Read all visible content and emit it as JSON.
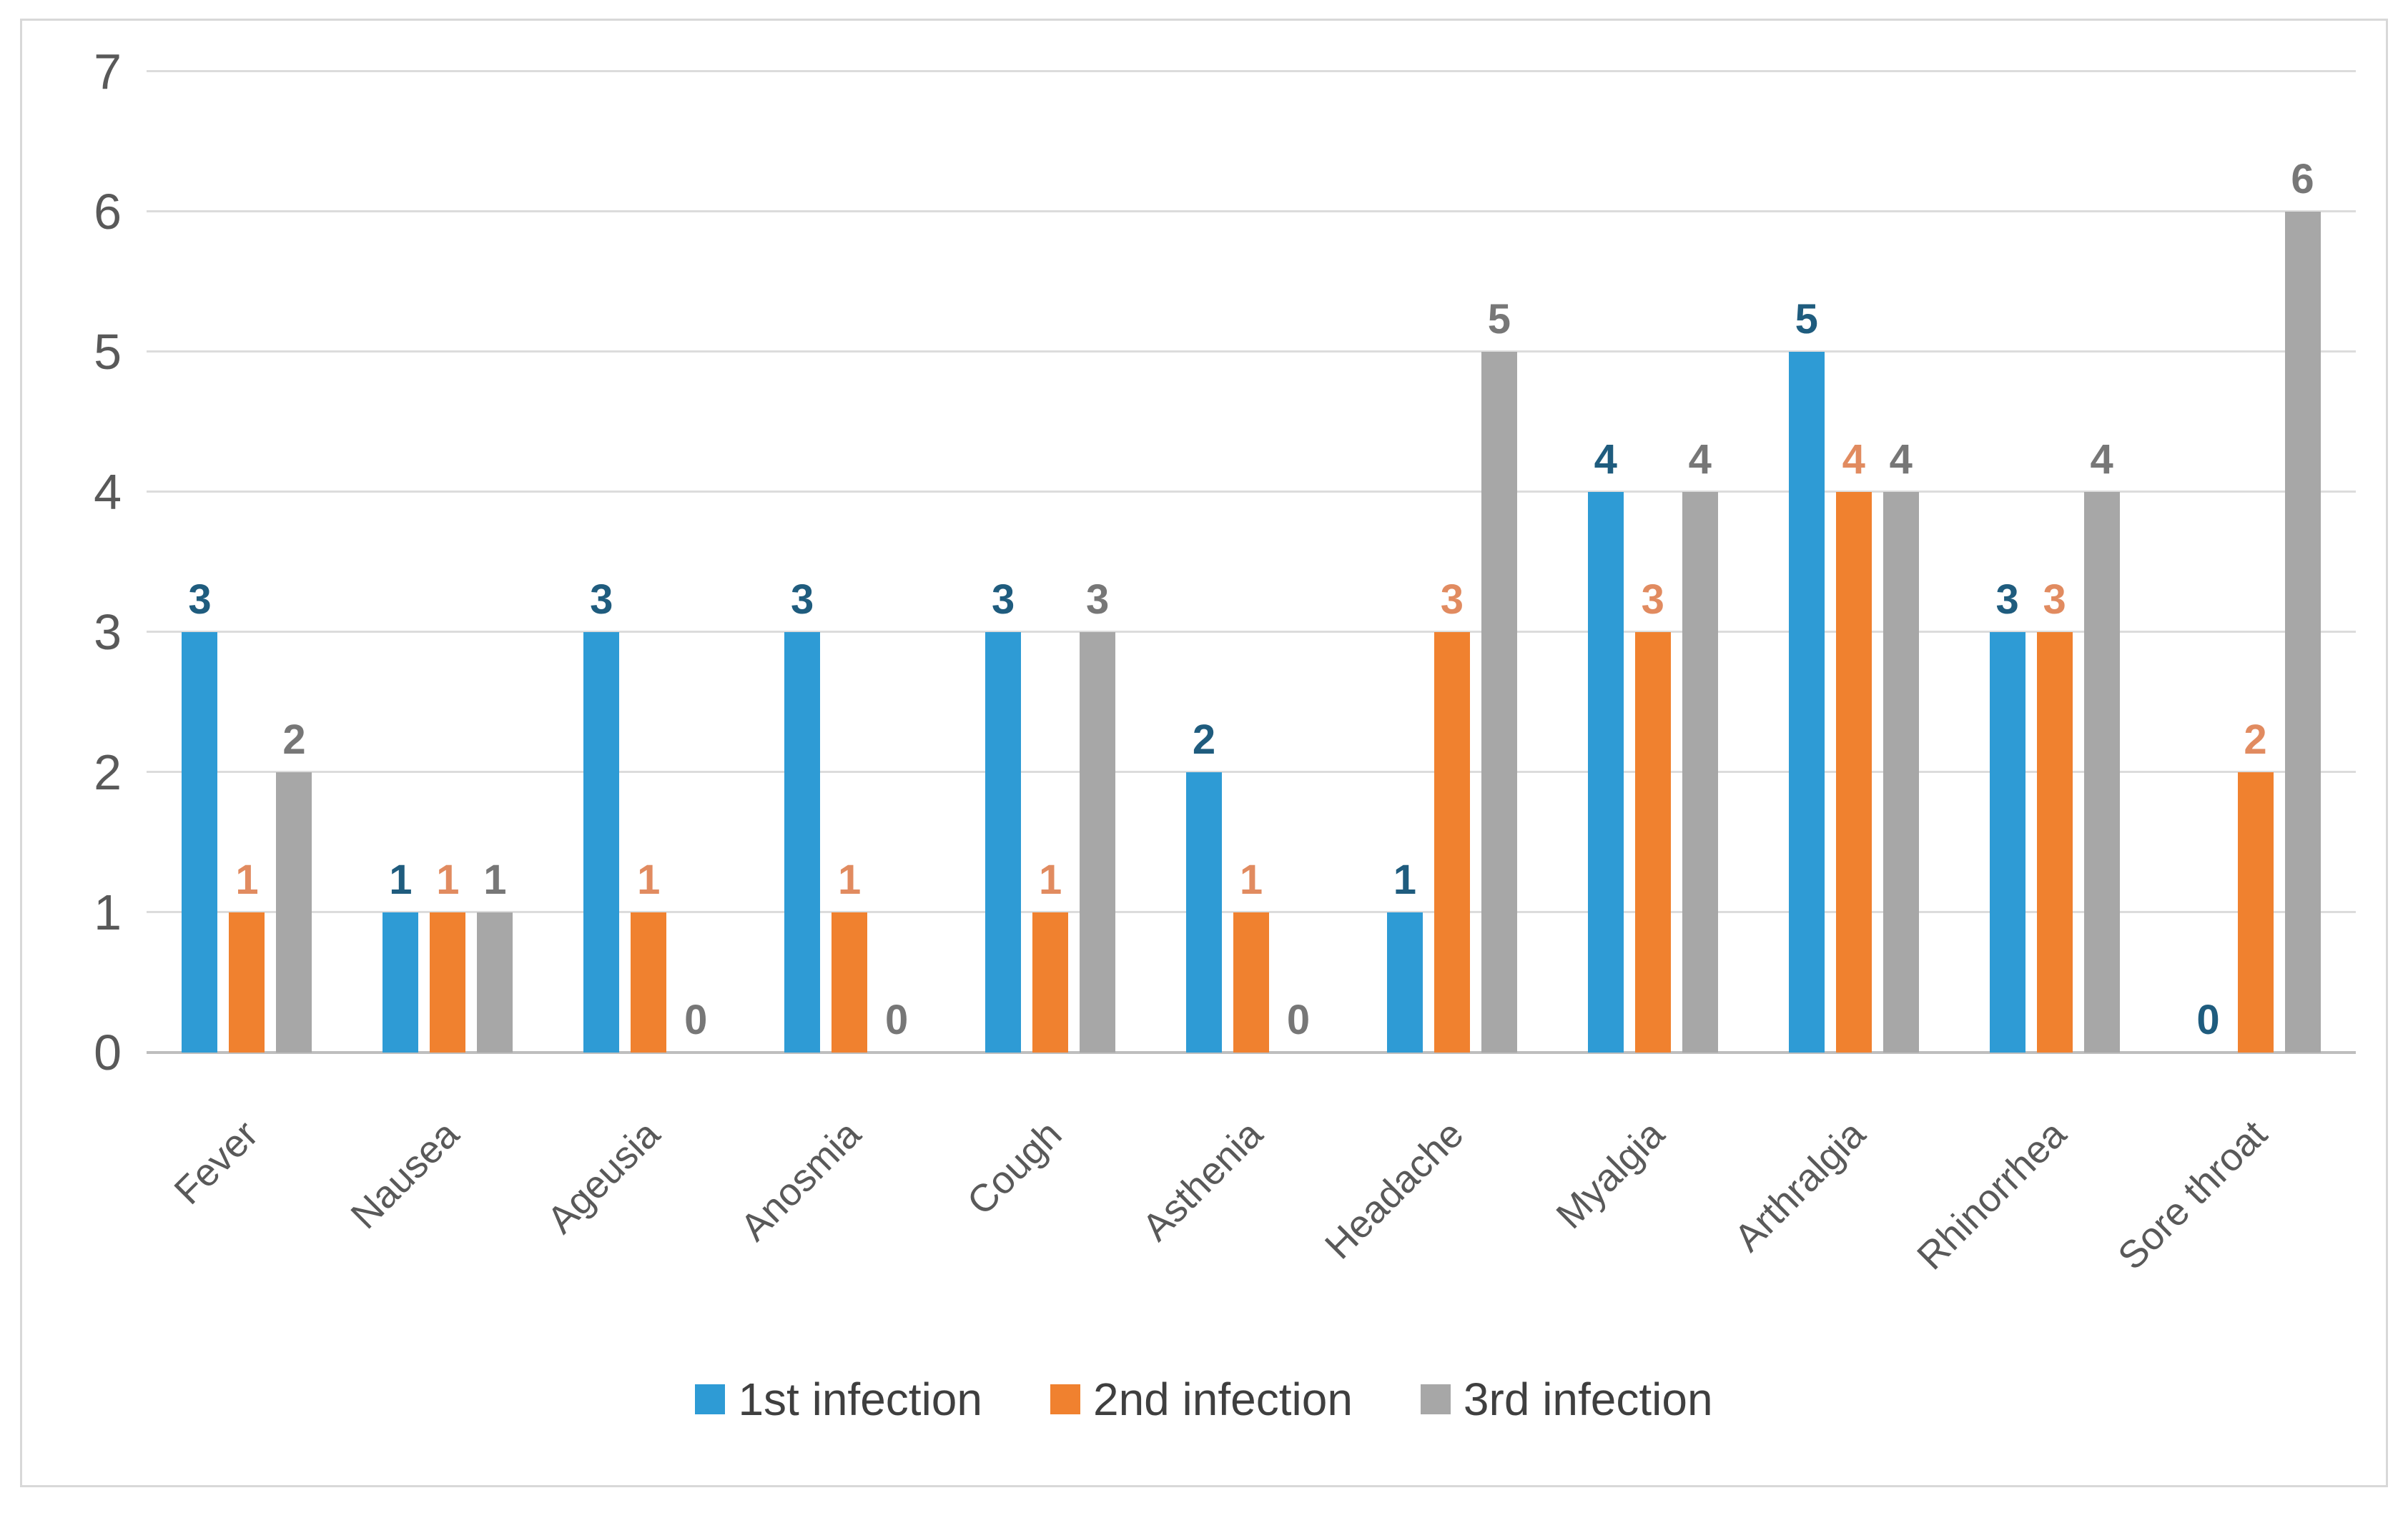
{
  "figure": {
    "background": "#ffffff",
    "border_color": "#d8d8d8"
  },
  "chart_data": {
    "type": "bar",
    "title": "",
    "xlabel": "",
    "ylabel": "",
    "categories": [
      "Fever",
      "Nausea",
      "Ageusia",
      "Anosmia",
      "Cough",
      "Asthenia",
      "Headache",
      "Myalgia",
      "Arthralgia",
      "Rhinorrhea",
      "Sore throat"
    ],
    "series": [
      {
        "name": "1st infection",
        "color": "#2E9BD5",
        "label_color": "#1F5C7E",
        "values": [
          3,
          1,
          3,
          3,
          3,
          2,
          1,
          4,
          5,
          3,
          0
        ]
      },
      {
        "name": "2nd infection",
        "color": "#F0812F",
        "label_color": "#E18B60",
        "values": [
          1,
          1,
          1,
          1,
          1,
          1,
          3,
          3,
          4,
          3,
          2
        ]
      },
      {
        "name": "3rd infection",
        "color": "#A7A7A7",
        "label_color": "#777777",
        "values": [
          2,
          1,
          0,
          0,
          3,
          0,
          5,
          4,
          4,
          4,
          6
        ]
      }
    ],
    "ylim": [
      0,
      7
    ],
    "yticks": [
      0,
      1,
      2,
      3,
      4,
      5,
      6,
      7
    ],
    "grid": true,
    "data_labels": true,
    "legend_position": "bottom",
    "colors": {
      "gridline": "#dcdcdc",
      "baseline": "#bebebe",
      "tick_text": "#595959",
      "xlabel_text": "#595959",
      "legend_text": "#3f3f3f"
    }
  }
}
